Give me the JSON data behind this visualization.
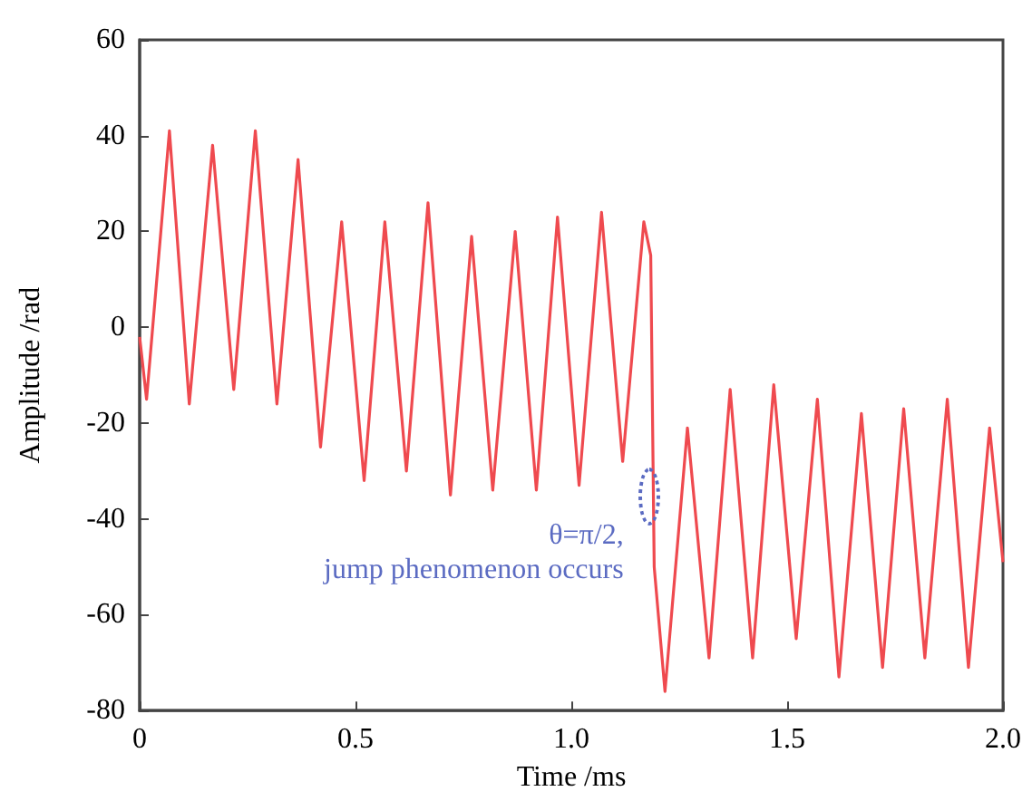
{
  "chart_data": {
    "type": "line",
    "xlabel": "Time /ms",
    "ylabel": "Amplitude /rad",
    "xlim": [
      0,
      2
    ],
    "xticks": [
      0,
      0.5,
      {
        "value": 1,
        "label": "1.0"
      },
      1.5,
      {
        "value": 2,
        "label": "2.0"
      }
    ],
    "ylim": [
      -80,
      60
    ],
    "yticks": [
      -80,
      -60,
      -40,
      -20,
      0,
      20,
      40,
      60
    ],
    "grid": false,
    "marker": "none",
    "line_style": "solid",
    "annotations": [
      {
        "text": "θ=π/2,\njump phenomenon occurs",
        "x": 1.18,
        "y": -36
      }
    ],
    "series": [
      {
        "color": "#ef4a4f",
        "x": [
          0,
          0.016,
          0.069,
          0.115,
          0.169,
          0.218,
          0.268,
          0.318,
          0.367,
          0.419,
          0.468,
          0.52,
          0.568,
          0.618,
          0.668,
          0.72,
          0.769,
          0.818,
          0.87,
          0.919,
          0.968,
          1.018,
          1.07,
          1.119,
          1.168,
          1.184,
          1.192,
          1.217,
          1.269,
          1.319,
          1.368,
          1.42,
          1.469,
          1.521,
          1.57,
          1.62,
          1.672,
          1.721,
          1.77,
          1.819,
          1.871,
          1.92,
          1.969,
          2.0
        ],
        "values": [
          -2,
          -15,
          41,
          -16,
          38,
          -13,
          41,
          -16,
          35,
          -25,
          22,
          -32,
          22,
          -30,
          26,
          -35,
          19,
          -34,
          20,
          -34,
          23,
          -33,
          24,
          -28,
          22,
          15,
          -50,
          -76,
          -21,
          -69,
          -13,
          -69,
          -12,
          -65,
          -15,
          -73,
          -18,
          -71,
          -17,
          -69,
          -15,
          -71,
          -21,
          -49
        ]
      }
    ]
  }
}
